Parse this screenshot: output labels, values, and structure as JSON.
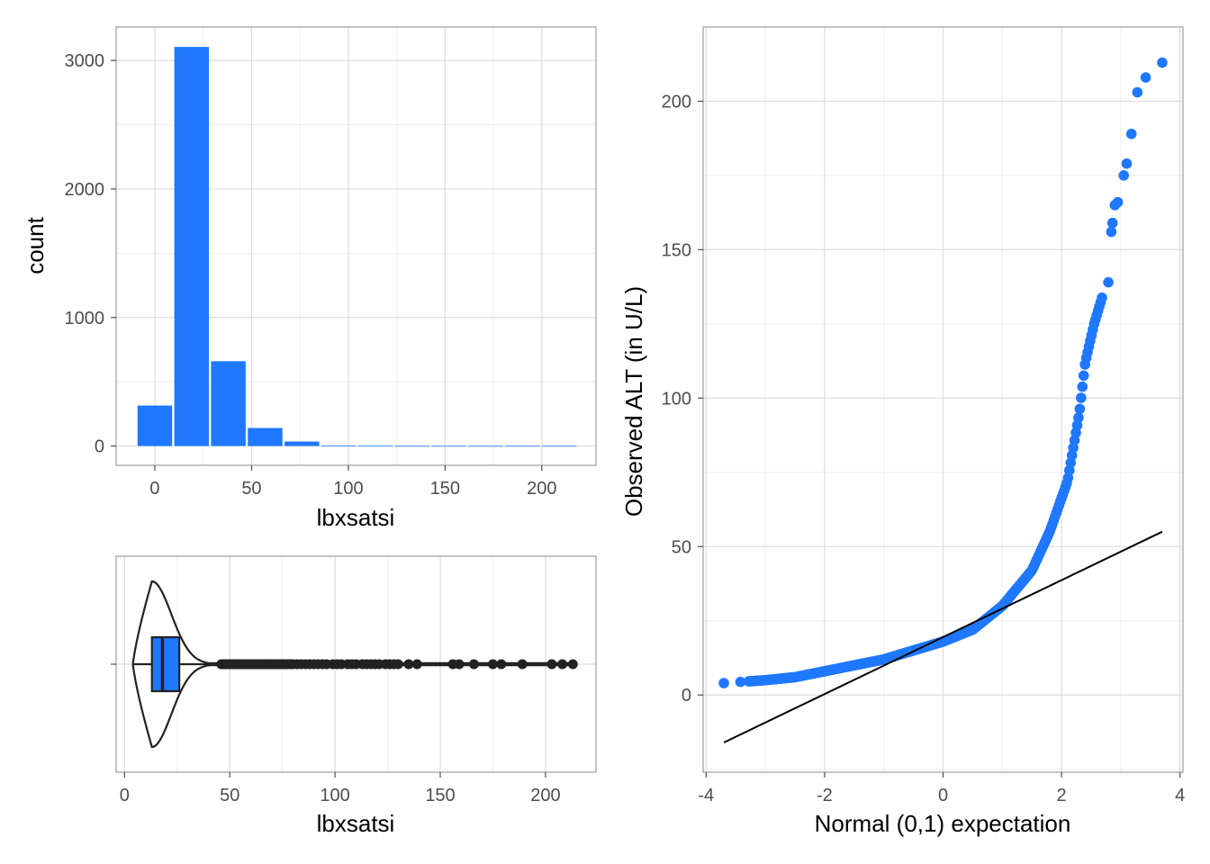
{
  "colors": {
    "accent": "#1f78ff",
    "dark": "#222222",
    "grid": "#dddddd",
    "minor_grid": "#eeeeee",
    "frame": "#9e9e9e"
  },
  "chart_data": [
    {
      "type": "bar",
      "name": "histogram",
      "xlabel": "lbxsatsi",
      "ylabel": "count",
      "x_ticks": [
        "0",
        "50",
        "100",
        "150",
        "200"
      ],
      "y_ticks": [
        "0",
        "1000",
        "2000",
        "3000"
      ],
      "xlim": [
        -20,
        228
      ],
      "ylim": [
        -150,
        3260
      ],
      "bin_width": 19,
      "bins": [
        {
          "center": 0,
          "count": 315
        },
        {
          "center": 19,
          "count": 3105
        },
        {
          "center": 38,
          "count": 660
        },
        {
          "center": 57,
          "count": 140
        },
        {
          "center": 76,
          "count": 35
        },
        {
          "center": 95,
          "count": 3
        },
        {
          "center": 114,
          "count": 2
        },
        {
          "center": 133,
          "count": 1
        },
        {
          "center": 152,
          "count": 1
        },
        {
          "center": 171,
          "count": 1
        },
        {
          "center": 190,
          "count": 1
        },
        {
          "center": 209,
          "count": 1
        }
      ],
      "grid": true
    },
    {
      "type": "violin-box",
      "name": "violin_boxplot",
      "xlabel": "lbxsatsi",
      "x_ticks": [
        "0",
        "50",
        "100",
        "150",
        "200"
      ],
      "xlim": [
        -4,
        224
      ],
      "box": {
        "min": 4,
        "q1": 13,
        "median": 18,
        "q3": 26,
        "whisker_high": 45
      },
      "violin_max": 214,
      "outliers": [
        46,
        47,
        48,
        49,
        50,
        51,
        52,
        53,
        54,
        55,
        56,
        57,
        58,
        59,
        60,
        61,
        62,
        63,
        64,
        65,
        66,
        67,
        68,
        69,
        70,
        71,
        72,
        73,
        74,
        75,
        76,
        77,
        78,
        79,
        80,
        82,
        84,
        86,
        88,
        90,
        92,
        94,
        96,
        99,
        101,
        103,
        106,
        108,
        110,
        113,
        115,
        117,
        119,
        121,
        124,
        126,
        128,
        130,
        135,
        139,
        156,
        159,
        166,
        175,
        179,
        189,
        203,
        208,
        213
      ],
      "grid": true
    },
    {
      "type": "scatter",
      "name": "qq_plot",
      "xlabel": "Normal (0,1) expectation",
      "ylabel": "Observed ALT (in U/L)",
      "x_ticks": [
        "-4",
        "-2",
        "0",
        "2",
        "4"
      ],
      "y_ticks": [
        "0",
        "50",
        "100",
        "150",
        "200"
      ],
      "xlim": [
        -4.05,
        4.05
      ],
      "ylim": [
        -26,
        225
      ],
      "reference_line": {
        "x": [
          -3.7,
          3.7
        ],
        "y": [
          -16,
          55
        ]
      },
      "curve_knots": [
        {
          "z": -3.7,
          "y": 4
        },
        {
          "z": -3.0,
          "y": 5
        },
        {
          "z": -2.5,
          "y": 6
        },
        {
          "z": -2.0,
          "y": 8
        },
        {
          "z": -1.5,
          "y": 10
        },
        {
          "z": -1.0,
          "y": 12
        },
        {
          "z": -0.5,
          "y": 15
        },
        {
          "z": 0.0,
          "y": 18
        },
        {
          "z": 0.5,
          "y": 22
        },
        {
          "z": 1.0,
          "y": 30
        },
        {
          "z": 1.5,
          "y": 42
        },
        {
          "z": 1.8,
          "y": 55
        },
        {
          "z": 2.1,
          "y": 72
        },
        {
          "z": 2.3,
          "y": 95
        },
        {
          "z": 2.4,
          "y": 112
        },
        {
          "z": 2.55,
          "y": 125
        },
        {
          "z": 2.7,
          "y": 135
        }
      ],
      "tail_points": [
        {
          "x": 2.79,
          "y": 139
        },
        {
          "x": 2.84,
          "y": 156
        },
        {
          "x": 2.86,
          "y": 159
        },
        {
          "x": 2.9,
          "y": 165
        },
        {
          "x": 2.95,
          "y": 166
        },
        {
          "x": 3.05,
          "y": 175
        },
        {
          "x": 3.1,
          "y": 179
        },
        {
          "x": 3.18,
          "y": 189
        },
        {
          "x": 3.28,
          "y": 203
        },
        {
          "x": 3.42,
          "y": 208
        },
        {
          "x": 3.7,
          "y": 213
        }
      ],
      "grid": true
    }
  ]
}
